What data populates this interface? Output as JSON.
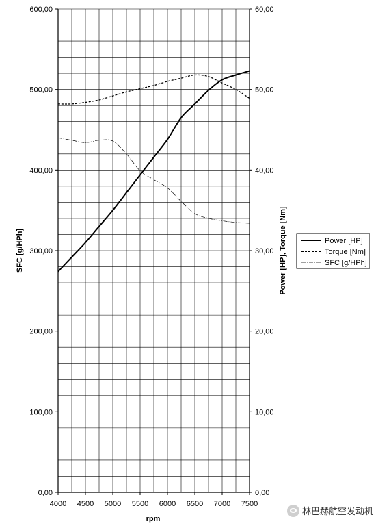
{
  "chart_data": {
    "type": "line",
    "xlabel": "rpm",
    "ylabel_left": "SFC [g/HPh]",
    "ylabel_right": "Power [HP], Torque [Nm]",
    "x_ticks": [
      "4000",
      "4500",
      "5000",
      "5500",
      "6000",
      "6500",
      "7000",
      "7500"
    ],
    "y_left_ticks": [
      "0,00",
      "100,00",
      "200,00",
      "300,00",
      "400,00",
      "500,00",
      "600,00"
    ],
    "y_right_ticks": [
      "0,00",
      "10,00",
      "20,00",
      "30,00",
      "40,00",
      "50,00",
      "60,00"
    ],
    "xlim": [
      4000,
      7500
    ],
    "ylim_left": [
      0,
      600
    ],
    "ylim_right": [
      0,
      60
    ],
    "grid": true,
    "legend_position": "right",
    "series": [
      {
        "name": "Power [HP]",
        "axis": "right",
        "style": "solid",
        "color": "#000000",
        "x": [
          4000,
          4250,
          4500,
          4750,
          5000,
          5250,
          5500,
          5750,
          6000,
          6250,
          6500,
          6750,
          7000,
          7250,
          7500
        ],
        "values": [
          27.4,
          29.2,
          31.0,
          33.0,
          35.0,
          37.2,
          39.4,
          41.6,
          43.8,
          46.5,
          48.2,
          49.9,
          51.2,
          51.8,
          52.3
        ]
      },
      {
        "name": "Torque [Nm]",
        "axis": "right",
        "style": "dashed",
        "color": "#000000",
        "x": [
          4000,
          4250,
          4500,
          4750,
          5000,
          5250,
          5500,
          5750,
          6000,
          6250,
          6500,
          6750,
          7000,
          7250,
          7500
        ],
        "values": [
          48.2,
          48.2,
          48.4,
          48.7,
          49.2,
          49.7,
          50.1,
          50.5,
          51.0,
          51.4,
          51.8,
          51.6,
          50.8,
          50.0,
          48.9
        ]
      },
      {
        "name": "SFC [g/HPh]",
        "axis": "left",
        "style": "dash-dot",
        "color": "#000000",
        "x": [
          4000,
          4250,
          4500,
          4750,
          5000,
          5250,
          5500,
          5750,
          6000,
          6250,
          6500,
          6750,
          7000,
          7250,
          7500
        ],
        "values": [
          440,
          437,
          434,
          437,
          436,
          420,
          399,
          388,
          378,
          361,
          346,
          340,
          337,
          335,
          334
        ]
      }
    ]
  },
  "watermark": {
    "text": "林巴赫航空发动机",
    "icon": "wechat-icon"
  }
}
